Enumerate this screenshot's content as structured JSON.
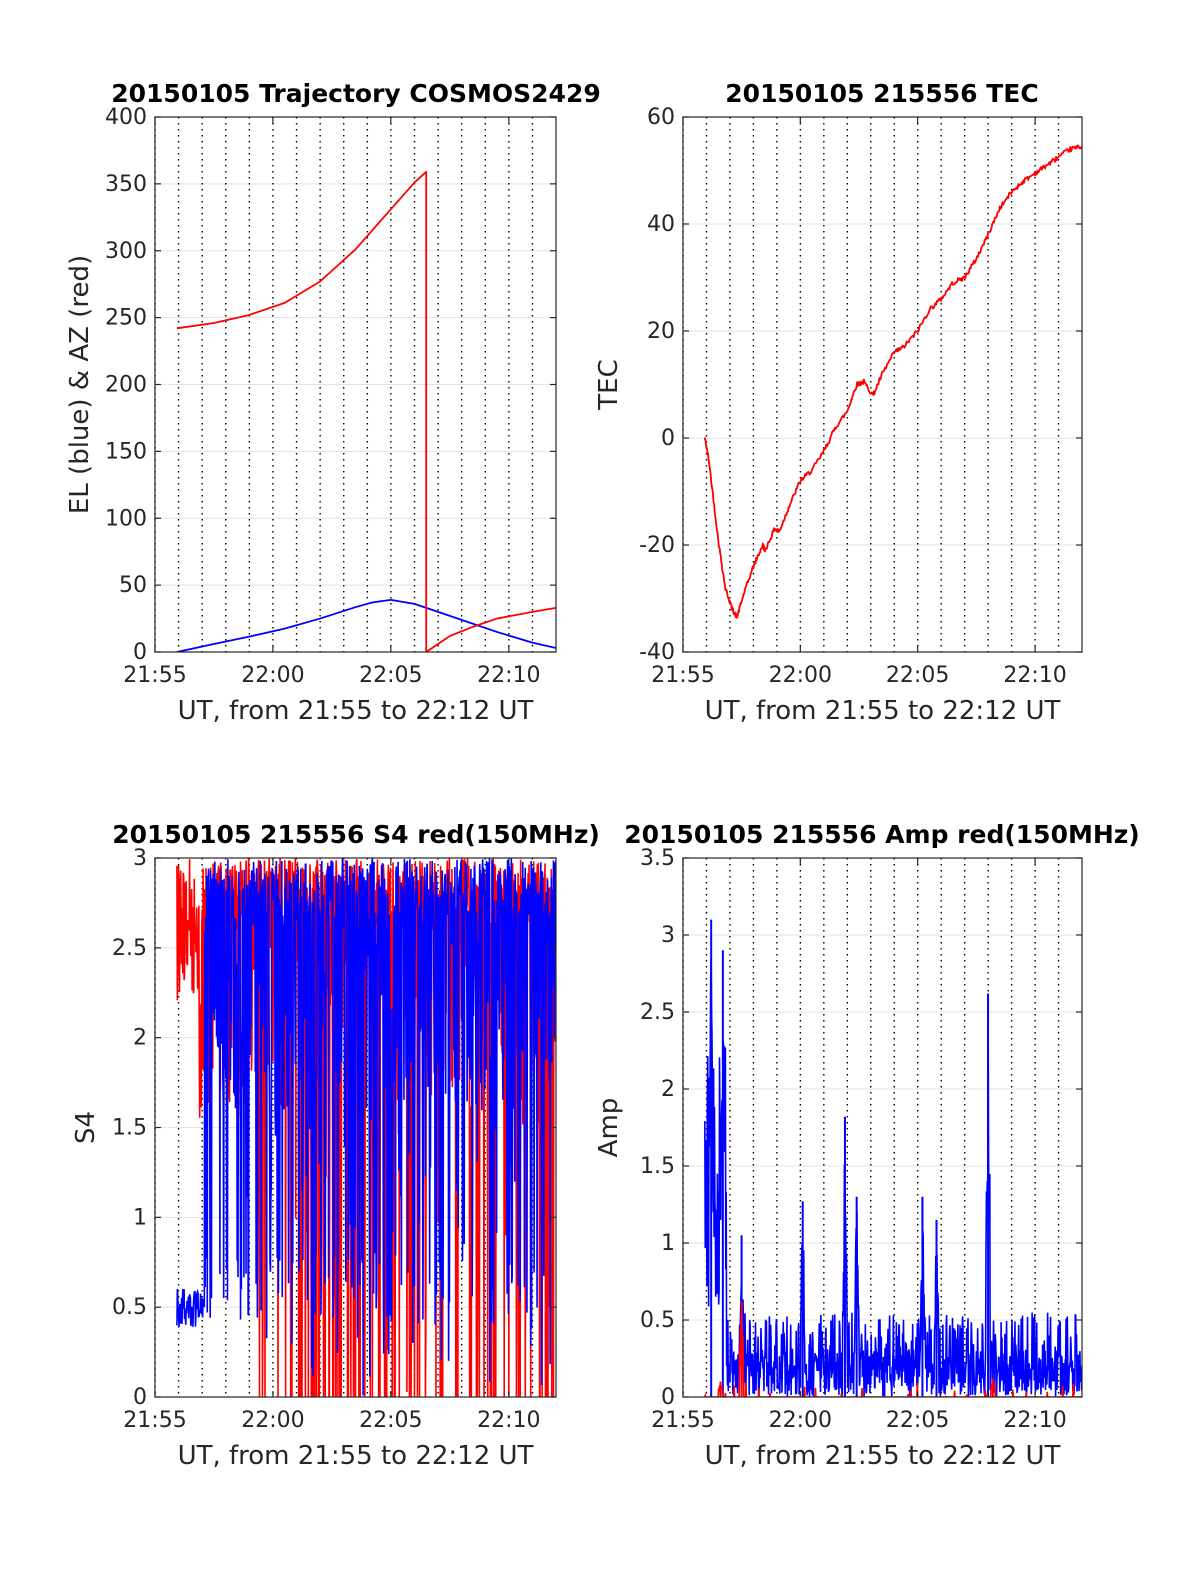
{
  "chart_data": [
    {
      "type": "line",
      "title": "20150105 Trajectory COSMOS2429",
      "xlabel": "UT, from 21:55 to 22:12 UT",
      "ylabel": "EL (blue) & AZ (red)",
      "xlim": [
        21.9167,
        22.2
      ],
      "ylim": [
        0,
        400
      ],
      "grid": true,
      "x_ticks": [
        {
          "v": 21.9167,
          "label": "21:55"
        },
        {
          "v": 22.0,
          "label": "22:00"
        },
        {
          "v": 22.0833,
          "label": "22:05"
        },
        {
          "v": 22.1667,
          "label": "22:10"
        }
      ],
      "y_ticks": [
        {
          "v": 0,
          "label": "0"
        },
        {
          "v": 50,
          "label": "50"
        },
        {
          "v": 100,
          "label": "100"
        },
        {
          "v": 150,
          "label": "150"
        },
        {
          "v": 200,
          "label": "200"
        },
        {
          "v": 250,
          "label": "250"
        },
        {
          "v": 300,
          "label": "300"
        },
        {
          "v": 350,
          "label": "350"
        },
        {
          "v": 400,
          "label": "400"
        }
      ],
      "series": [
        {
          "name": "EL",
          "color": "#0000ff",
          "x": [
            21.9322,
            21.9583,
            21.9833,
            22.0083,
            22.0333,
            22.0583,
            22.07,
            22.0833,
            22.1,
            22.1167,
            22.1333,
            22.1583,
            22.1833,
            22.2
          ],
          "y": [
            0,
            6,
            11.5,
            17.5,
            25,
            33.5,
            37,
            39,
            36,
            30,
            24,
            15,
            7,
            3
          ]
        },
        {
          "name": "AZ",
          "color": "#ff0000",
          "x": [
            21.9322,
            21.9583,
            21.9833,
            22.0083,
            22.0333,
            22.0583,
            22.0833,
            22.1,
            22.1083,
            22.1083,
            22.1083,
            22.125,
            22.1417,
            22.1583,
            22.1833,
            22.2
          ],
          "y": [
            242,
            246,
            252,
            261,
            277,
            301,
            331,
            351,
            359,
            359,
            0,
            12,
            19,
            25,
            30,
            33
          ]
        }
      ]
    },
    {
      "type": "line",
      "title": "20150105 215556 TEC",
      "xlabel": "UT, from 21:55 to 22:12 UT",
      "ylabel": "TEC",
      "xlim": [
        21.9167,
        22.2
      ],
      "ylim": [
        -40,
        60
      ],
      "grid": true,
      "x_ticks": [
        {
          "v": 21.9167,
          "label": "21:55"
        },
        {
          "v": 22.0,
          "label": "22:00"
        },
        {
          "v": 22.0833,
          "label": "22:05"
        },
        {
          "v": 22.1667,
          "label": "22:10"
        }
      ],
      "y_ticks": [
        {
          "v": -40,
          "label": "-40"
        },
        {
          "v": -20,
          "label": "-20"
        },
        {
          "v": 0,
          "label": "0"
        },
        {
          "v": 20,
          "label": "20"
        },
        {
          "v": 40,
          "label": "40"
        },
        {
          "v": 60,
          "label": "60"
        }
      ],
      "series": [
        {
          "name": "TEC",
          "color": "#ff0000",
          "x": [
            21.9322,
            21.935,
            21.9417,
            21.9467,
            21.9517,
            21.955,
            21.96,
            21.9667,
            21.9733,
            21.975,
            21.9817,
            21.985,
            21.9917,
            22.0,
            22.0083,
            22.0167,
            22.025,
            22.0333,
            22.04,
            22.045,
            22.0517,
            22.0583,
            22.0667,
            22.0733,
            22.0833,
            22.0917,
            22.1,
            22.1083,
            22.1167,
            22.125,
            22.1333,
            22.1417,
            22.15,
            22.1583,
            22.1667,
            22.175,
            22.1833,
            22.1917,
            22.2
          ],
          "y": [
            0,
            -4,
            -19,
            -28,
            -32,
            -33.5,
            -29,
            -24,
            -20,
            -21,
            -17,
            -17.5,
            -13,
            -8,
            -6,
            -2.5,
            2,
            5,
            10,
            10.5,
            8,
            12,
            16,
            17,
            20,
            24,
            26,
            29,
            30,
            33.5,
            38,
            43,
            46,
            48,
            49.5,
            51,
            52.5,
            54,
            54.5
          ]
        }
      ]
    },
    {
      "type": "line",
      "title": "20150105 215556 S4 red(150MHz)",
      "xlabel": "UT, from 21:55 to 22:12 UT",
      "ylabel": "S4",
      "xlim": [
        21.9167,
        22.2
      ],
      "ylim": [
        0,
        3
      ],
      "grid": true,
      "x_ticks": [
        {
          "v": 21.9167,
          "label": "21:55"
        },
        {
          "v": 22.0,
          "label": "22:00"
        },
        {
          "v": 22.0833,
          "label": "22:05"
        },
        {
          "v": 22.1667,
          "label": "22:10"
        }
      ],
      "y_ticks": [
        {
          "v": 0,
          "label": "0"
        },
        {
          "v": 0.5,
          "label": "0.5"
        },
        {
          "v": 1,
          "label": "1"
        },
        {
          "v": 1.5,
          "label": "1.5"
        },
        {
          "v": 2,
          "label": "2"
        },
        {
          "v": 2.5,
          "label": "2.5"
        },
        {
          "v": 3,
          "label": "3"
        }
      ],
      "series": [
        {
          "name": "S4 red",
          "color": "#ff0000",
          "description": "dense noisy series between 21:56 and 22:12, mostly saturated near 3 with frequent drops to 0",
          "x_range": [
            21.9322,
            22.2
          ],
          "typical_range": [
            0,
            3
          ]
        },
        {
          "name": "S4 blue",
          "color": "#0000ff",
          "description": "about 0.5 from 21:56 to 21:57, then dense values between 0 and 3",
          "x_range": [
            21.9322,
            22.2
          ],
          "typical_range": [
            0.4,
            3
          ]
        }
      ]
    },
    {
      "type": "line",
      "title": "20150105 215556 Amp red(150MHz)",
      "xlabel": "UT, from 21:55 to 22:12 UT",
      "ylabel": "Amp",
      "xlim": [
        21.9167,
        22.2
      ],
      "ylim": [
        0,
        3.5
      ],
      "grid": true,
      "x_ticks": [
        {
          "v": 21.9167,
          "label": "21:55"
        },
        {
          "v": 22.0,
          "label": "22:00"
        },
        {
          "v": 22.0833,
          "label": "22:05"
        },
        {
          "v": 22.1667,
          "label": "22:10"
        }
      ],
      "y_ticks": [
        {
          "v": 0,
          "label": "0"
        },
        {
          "v": 0.5,
          "label": "0.5"
        },
        {
          "v": 1,
          "label": "1"
        },
        {
          "v": 1.5,
          "label": "1.5"
        },
        {
          "v": 2,
          "label": "2"
        },
        {
          "v": 2.5,
          "label": "2.5"
        },
        {
          "v": 3,
          "label": "3"
        },
        {
          "v": 3.5,
          "label": "3.5"
        }
      ],
      "series": [
        {
          "name": "Amp blue",
          "color": "#0000ff",
          "description": "dense noisy amplitude, baseline about 0 to 0.5",
          "x_range": [
            21.9322,
            22.2
          ],
          "peaks": [
            {
              "x": 21.9367,
              "y": 3.1
            },
            {
              "x": 21.945,
              "y": 2.9
            },
            {
              "x": 21.9583,
              "y": 1.05
            },
            {
              "x": 22.0017,
              "y": 1.27
            },
            {
              "x": 22.0317,
              "y": 1.82
            },
            {
              "x": 22.04,
              "y": 1.3
            },
            {
              "x": 22.0867,
              "y": 1.3
            },
            {
              "x": 22.0967,
              "y": 1.15
            },
            {
              "x": 22.1333,
              "y": 2.62
            }
          ]
        },
        {
          "name": "Amp red",
          "color": "#ff0000",
          "description": "small values near 0",
          "x_range": [
            21.9322,
            22.2
          ],
          "peaks": [
            {
              "x": 21.9433,
              "y": 0.1
            },
            {
              "x": 21.9583,
              "y": 0.62
            },
            {
              "x": 22.1367,
              "y": 0.12
            }
          ]
        }
      ]
    }
  ]
}
